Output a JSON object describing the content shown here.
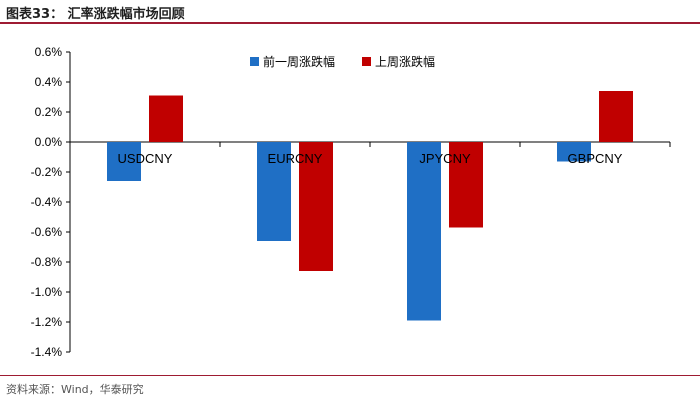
{
  "header": {
    "title": "图表33： 汇率涨跌幅市场回顾"
  },
  "footer": {
    "source": "资料来源：Wind，华泰研究"
  },
  "chart_data": {
    "type": "bar",
    "categories": [
      "USDCNY",
      "EURCNY",
      "JPYCNY",
      "GBPCNY"
    ],
    "series": [
      {
        "name": "前一周涨跌幅",
        "color": "#1f6fc5",
        "values": [
          -0.26,
          -0.66,
          -1.19,
          -0.13
        ]
      },
      {
        "name": "上周涨跌幅",
        "color": "#c00000",
        "values": [
          0.31,
          -0.86,
          -0.57,
          0.34
        ]
      }
    ],
    "ylim": [
      -1.4,
      0.6
    ],
    "yticks": [
      0.6,
      0.4,
      0.2,
      0.0,
      -0.2,
      -0.4,
      -0.6,
      -0.8,
      -1.0,
      -1.2,
      -1.4
    ],
    "ytick_labels": [
      "0.6%",
      "0.4%",
      "0.2%",
      "0.0%",
      "-0.2%",
      "-0.4%",
      "-0.6%",
      "-0.8%",
      "-1.0%",
      "-1.2%",
      "-1.4%"
    ],
    "legend_position": "top-center",
    "grid": false
  }
}
